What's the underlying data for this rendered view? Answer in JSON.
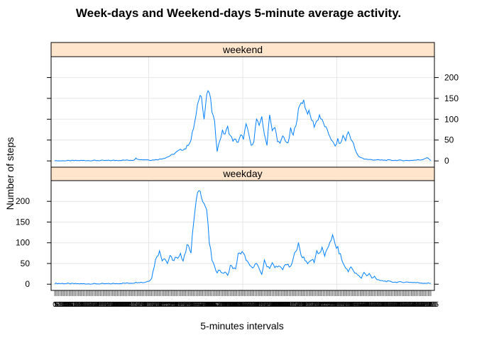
{
  "chart_data": {
    "type": "line",
    "layout": "lattice-panels",
    "title": "Week-days and Weekend-days 5-minute average activity.",
    "xlabel": "5-minutes intervals",
    "ylabel": "Number of steps",
    "ylim": [
      -15,
      250
    ],
    "yticks": [
      0,
      50,
      100,
      150,
      200
    ],
    "x_count": 288,
    "x_interval_minutes": 5,
    "grid": true,
    "line_color": "#0080ff",
    "strip_color": "#ffe5cc",
    "panels": [
      {
        "name": "weekend",
        "control_points": [
          [
            0,
            0
          ],
          [
            20,
            1
          ],
          [
            40,
            1
          ],
          [
            60,
            2
          ],
          [
            62,
            6
          ],
          [
            66,
            3
          ],
          [
            70,
            3
          ],
          [
            74,
            2
          ],
          [
            80,
            4
          ],
          [
            85,
            8
          ],
          [
            90,
            15
          ],
          [
            95,
            25
          ],
          [
            100,
            30
          ],
          [
            104,
            50
          ],
          [
            108,
            110
          ],
          [
            110,
            150
          ],
          [
            112,
            160
          ],
          [
            114,
            100
          ],
          [
            116,
            160
          ],
          [
            118,
            165
          ],
          [
            120,
            120
          ],
          [
            122,
            90
          ],
          [
            124,
            25
          ],
          [
            126,
            50
          ],
          [
            128,
            70
          ],
          [
            130,
            65
          ],
          [
            132,
            80
          ],
          [
            134,
            60
          ],
          [
            136,
            50
          ],
          [
            138,
            50
          ],
          [
            140,
            45
          ],
          [
            142,
            60
          ],
          [
            144,
            55
          ],
          [
            146,
            85
          ],
          [
            148,
            65
          ],
          [
            150,
            35
          ],
          [
            152,
            50
          ],
          [
            154,
            100
          ],
          [
            156,
            80
          ],
          [
            158,
            110
          ],
          [
            160,
            60
          ],
          [
            162,
            40
          ],
          [
            164,
            115
          ],
          [
            166,
            70
          ],
          [
            168,
            80
          ],
          [
            170,
            50
          ],
          [
            172,
            40
          ],
          [
            174,
            60
          ],
          [
            176,
            50
          ],
          [
            178,
            40
          ],
          [
            180,
            75
          ],
          [
            182,
            60
          ],
          [
            184,
            90
          ],
          [
            186,
            120
          ],
          [
            188,
            140
          ],
          [
            190,
            145
          ],
          [
            192,
            120
          ],
          [
            194,
            115
          ],
          [
            196,
            100
          ],
          [
            198,
            85
          ],
          [
            200,
            95
          ],
          [
            202,
            110
          ],
          [
            204,
            95
          ],
          [
            206,
            85
          ],
          [
            208,
            70
          ],
          [
            210,
            60
          ],
          [
            212,
            45
          ],
          [
            214,
            35
          ],
          [
            216,
            50
          ],
          [
            218,
            40
          ],
          [
            220,
            60
          ],
          [
            222,
            50
          ],
          [
            224,
            70
          ],
          [
            226,
            55
          ],
          [
            228,
            40
          ],
          [
            230,
            20
          ],
          [
            232,
            10
          ],
          [
            234,
            8
          ],
          [
            236,
            5
          ],
          [
            240,
            3
          ],
          [
            250,
            2
          ],
          [
            270,
            1
          ],
          [
            280,
            3
          ],
          [
            284,
            8
          ],
          [
            287,
            1
          ]
        ]
      },
      {
        "name": "weekday",
        "control_points": [
          [
            0,
            2
          ],
          [
            20,
            1
          ],
          [
            40,
            1
          ],
          [
            50,
            2
          ],
          [
            60,
            3
          ],
          [
            64,
            5
          ],
          [
            68,
            4
          ],
          [
            72,
            8
          ],
          [
            74,
            15
          ],
          [
            76,
            45
          ],
          [
            78,
            70
          ],
          [
            80,
            78
          ],
          [
            82,
            60
          ],
          [
            84,
            65
          ],
          [
            86,
            50
          ],
          [
            88,
            70
          ],
          [
            90,
            55
          ],
          [
            92,
            65
          ],
          [
            94,
            60
          ],
          [
            96,
            70
          ],
          [
            98,
            60
          ],
          [
            100,
            80
          ],
          [
            102,
            100
          ],
          [
            104,
            75
          ],
          [
            106,
            150
          ],
          [
            108,
            200
          ],
          [
            110,
            230
          ],
          [
            112,
            215
          ],
          [
            114,
            195
          ],
          [
            116,
            180
          ],
          [
            118,
            100
          ],
          [
            120,
            60
          ],
          [
            122,
            40
          ],
          [
            124,
            30
          ],
          [
            126,
            35
          ],
          [
            128,
            25
          ],
          [
            130,
            30
          ],
          [
            132,
            20
          ],
          [
            134,
            45
          ],
          [
            136,
            40
          ],
          [
            138,
            35
          ],
          [
            140,
            75
          ],
          [
            142,
            70
          ],
          [
            144,
            80
          ],
          [
            146,
            55
          ],
          [
            148,
            50
          ],
          [
            150,
            40
          ],
          [
            152,
            45
          ],
          [
            154,
            50
          ],
          [
            156,
            35
          ],
          [
            158,
            25
          ],
          [
            160,
            55
          ],
          [
            162,
            45
          ],
          [
            164,
            40
          ],
          [
            166,
            50
          ],
          [
            168,
            40
          ],
          [
            170,
            45
          ],
          [
            172,
            40
          ],
          [
            174,
            35
          ],
          [
            176,
            50
          ],
          [
            178,
            45
          ],
          [
            180,
            40
          ],
          [
            182,
            60
          ],
          [
            184,
            85
          ],
          [
            186,
            95
          ],
          [
            188,
            70
          ],
          [
            190,
            65
          ],
          [
            192,
            55
          ],
          [
            194,
            50
          ],
          [
            196,
            60
          ],
          [
            198,
            55
          ],
          [
            200,
            80
          ],
          [
            202,
            75
          ],
          [
            204,
            85
          ],
          [
            206,
            70
          ],
          [
            208,
            80
          ],
          [
            210,
            105
          ],
          [
            212,
            115
          ],
          [
            214,
            95
          ],
          [
            216,
            85
          ],
          [
            218,
            70
          ],
          [
            220,
            50
          ],
          [
            222,
            40
          ],
          [
            224,
            30
          ],
          [
            226,
            45
          ],
          [
            228,
            30
          ],
          [
            230,
            25
          ],
          [
            232,
            20
          ],
          [
            234,
            15
          ],
          [
            236,
            30
          ],
          [
            238,
            20
          ],
          [
            240,
            25
          ],
          [
            242,
            15
          ],
          [
            244,
            20
          ],
          [
            246,
            10
          ],
          [
            250,
            8
          ],
          [
            260,
            5
          ],
          [
            270,
            5
          ],
          [
            280,
            3
          ],
          [
            287,
            2
          ]
        ]
      }
    ]
  }
}
